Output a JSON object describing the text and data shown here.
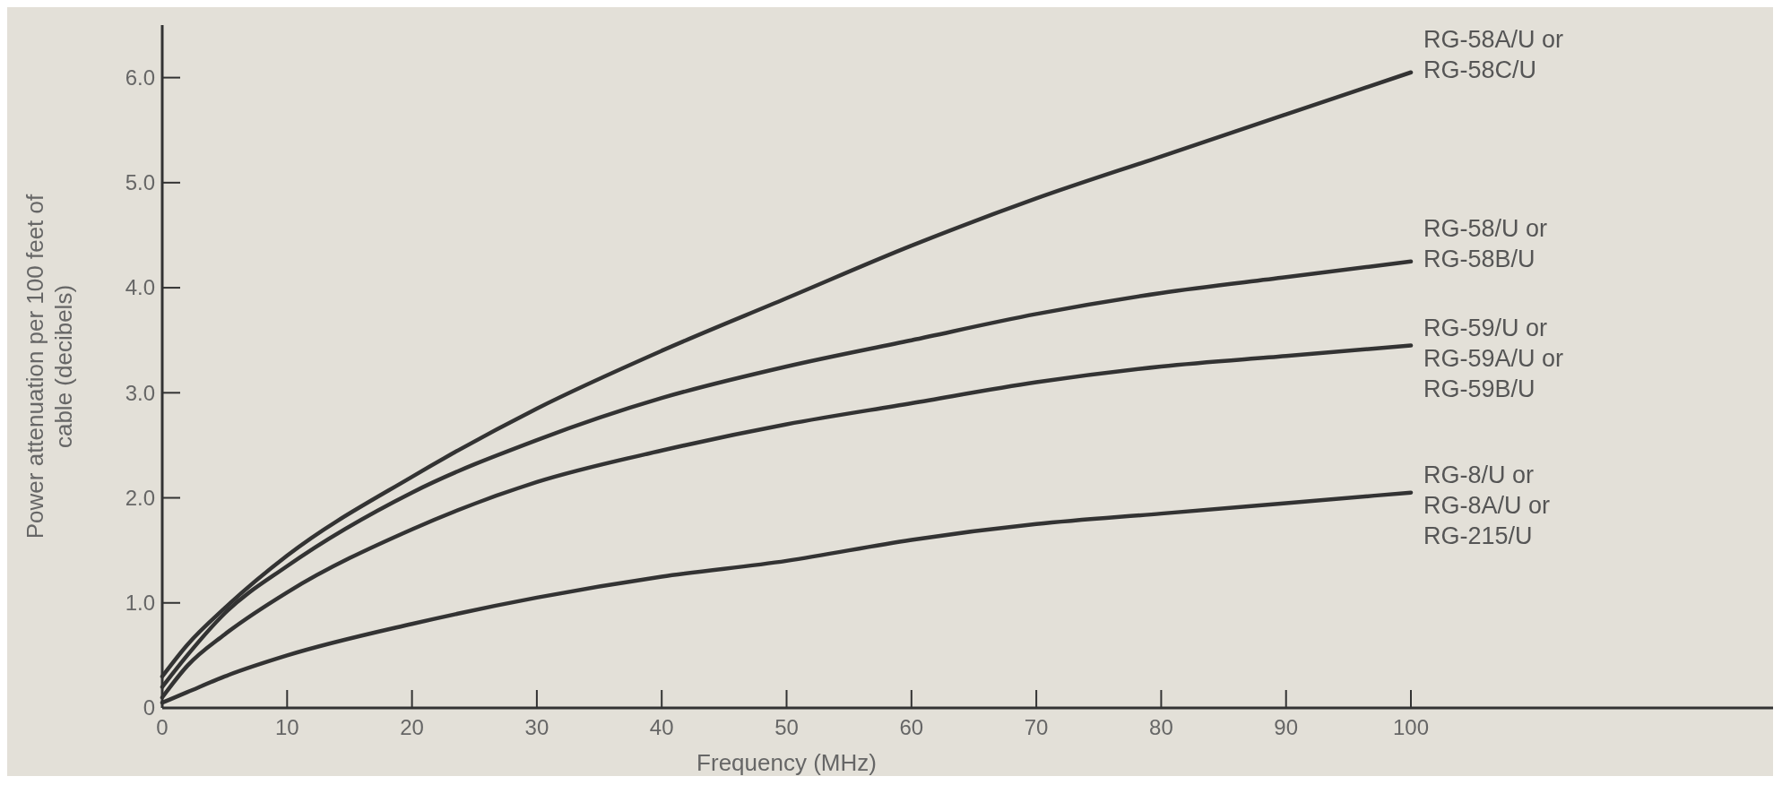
{
  "chart_data": {
    "type": "line",
    "xlabel": "Frequency (MHz)",
    "ylabel": "Power attenuation per 100 feet of\ncable (decibels)",
    "xlim": [
      0,
      129
    ],
    "ylim": [
      0,
      6.5
    ],
    "xticks": [
      0,
      10,
      20,
      30,
      40,
      50,
      60,
      70,
      80,
      90,
      100
    ],
    "yticks": [
      0,
      {
        "value": 1,
        "label": "1.0"
      },
      {
        "value": 2,
        "label": "2.0"
      },
      {
        "value": 3,
        "label": "3.0"
      },
      {
        "value": 4,
        "label": "4.0"
      },
      {
        "value": 5,
        "label": "5.0"
      },
      {
        "value": 6,
        "label": "6.0"
      }
    ],
    "x": [
      0,
      2,
      5,
      10,
      20,
      30,
      40,
      50,
      60,
      70,
      80,
      90,
      100
    ],
    "grid": false,
    "marker": "none",
    "line_style": "solid",
    "series": [
      {
        "name": "RG-58A/U or\nRG-58C/U",
        "color": "#333333",
        "values": [
          0.3,
          0.6,
          0.95,
          1.45,
          2.2,
          2.85,
          3.4,
          3.9,
          4.4,
          4.85,
          5.25,
          5.65,
          6.05
        ]
      },
      {
        "name": "RG-58/U or\nRG-58B/U",
        "color": "#333333",
        "values": [
          0.2,
          0.5,
          0.9,
          1.35,
          2.05,
          2.55,
          2.95,
          3.25,
          3.5,
          3.75,
          3.95,
          4.1,
          4.25
        ]
      },
      {
        "name": "RG-59/U or\nRG-59A/U or\nRG-59B/U",
        "color": "#333333",
        "values": [
          0.1,
          0.4,
          0.7,
          1.1,
          1.7,
          2.15,
          2.45,
          2.7,
          2.9,
          3.1,
          3.25,
          3.35,
          3.45
        ]
      },
      {
        "name": "RG-8/U or\nRG-8A/U or\nRG-215/U",
        "color": "#333333",
        "values": [
          0.05,
          0.15,
          0.3,
          0.5,
          0.8,
          1.05,
          1.25,
          1.4,
          1.6,
          1.75,
          1.85,
          1.95,
          2.05
        ]
      }
    ]
  }
}
